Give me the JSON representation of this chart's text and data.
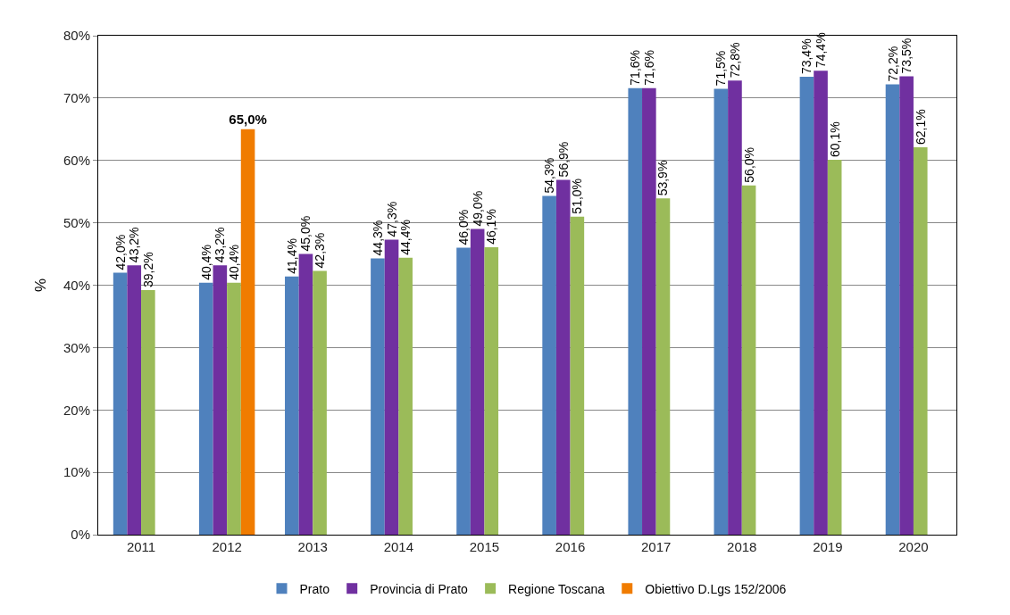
{
  "chart_data": {
    "type": "bar",
    "ylabel": "%",
    "categories": [
      "2011",
      "2012",
      "2013",
      "2014",
      "2015",
      "2016",
      "2017",
      "2018",
      "2019",
      "2020"
    ],
    "series": [
      {
        "name": "Prato",
        "color": "#4f81bd",
        "values": [
          42.0,
          40.4,
          41.4,
          44.3,
          46.0,
          54.3,
          71.6,
          71.5,
          73.4,
          72.2
        ],
        "value_labels": [
          "42,0%",
          "40,4%",
          "41,4%",
          "44,3%",
          "46,0%",
          "54,3%",
          "71,6%",
          "71,5%",
          "73,4%",
          "72,2%"
        ]
      },
      {
        "name": "Provincia di Prato",
        "color": "#7030a0",
        "values": [
          43.2,
          43.2,
          45.0,
          47.3,
          49.0,
          56.9,
          71.6,
          72.8,
          74.4,
          73.5
        ],
        "value_labels": [
          "43,2%",
          "43,2%",
          "45,0%",
          "47,3%",
          "49,0%",
          "56,9%",
          "71,6%",
          "72,8%",
          "74,4%",
          "73,5%"
        ]
      },
      {
        "name": "Regione Toscana",
        "color": "#9bbb59",
        "values": [
          39.2,
          40.4,
          42.3,
          44.4,
          46.1,
          51.0,
          53.9,
          56.0,
          60.1,
          62.1
        ],
        "value_labels": [
          "39,2%",
          "40,4%",
          "42,3%",
          "44,4%",
          "46,1%",
          "51,0%",
          "53,9%",
          "56,0%",
          "60,1%",
          "62,1%"
        ]
      },
      {
        "name": "Obiettivo D.Lgs 152/2006",
        "color": "#f07c00",
        "values": [
          null,
          65.0,
          null,
          null,
          null,
          null,
          null,
          null,
          null,
          null
        ],
        "value_labels": [
          null,
          "65,0%",
          null,
          null,
          null,
          null,
          null,
          null,
          null,
          null
        ]
      }
    ],
    "ylim": [
      0,
      80
    ],
    "yticks": [
      {
        "value": 0,
        "label": "0%"
      },
      {
        "value": 10,
        "label": "10%"
      },
      {
        "value": 20,
        "label": "20%"
      },
      {
        "value": 30,
        "label": "30%"
      },
      {
        "value": 40,
        "label": "40%"
      },
      {
        "value": 50,
        "label": "50%"
      },
      {
        "value": 60,
        "label": "60%"
      },
      {
        "value": 70,
        "label": "70%"
      },
      {
        "value": 80,
        "label": "80%"
      }
    ],
    "grid": "y",
    "legend": "bottom"
  }
}
